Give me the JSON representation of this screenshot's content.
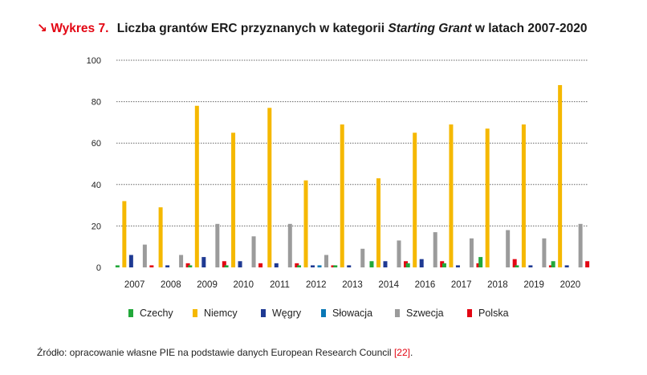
{
  "header": {
    "arrow": "↘",
    "label": "Wykres 7.",
    "title_prefix": "Liczba grantów ERC przyznanych w kategorii",
    "title_italic": "Starting Grant",
    "title_suffix": "w latach 2007-2020"
  },
  "source": {
    "text": "Źródło: opracowanie własne PIE na podstawie danych European Research Council",
    "ref": "[22]",
    "end": "."
  },
  "colors": {
    "Czechy": "#22a83a",
    "Niemcy": "#f5b800",
    "Węgry": "#1f3a93",
    "Słowacja": "#0a78b5",
    "Szwecja": "#9b9b9b",
    "Polska": "#e30613",
    "grid": "#666666",
    "title_accent": "#e30613"
  },
  "chart_data": {
    "type": "bar",
    "title": "Liczba grantów ERC przyznanych w kategorii Starting Grant w latach 2007-2020",
    "xlabel": "",
    "ylabel": "",
    "ylim": [
      0,
      100
    ],
    "yticks": [
      0,
      20,
      40,
      60,
      80,
      100
    ],
    "grid": "horizontal dotted",
    "legend_position": "bottom",
    "categories": [
      "2007",
      "2008",
      "2009",
      "2010",
      "2011",
      "2012",
      "2013",
      "2014",
      "2016",
      "2017",
      "2018",
      "2019",
      "2020"
    ],
    "series": [
      {
        "name": "Czechy",
        "values": [
          1,
          0,
          1,
          1,
          0,
          1,
          1,
          3,
          2,
          2,
          5,
          1,
          3
        ]
      },
      {
        "name": "Niemcy",
        "values": [
          32,
          29,
          78,
          65,
          77,
          42,
          69,
          43,
          65,
          69,
          67,
          69,
          88
        ]
      },
      {
        "name": "Węgry",
        "values": [
          6,
          1,
          5,
          3,
          2,
          1,
          1,
          3,
          4,
          1,
          0,
          1,
          1
        ]
      },
      {
        "name": "Słowacja",
        "values": [
          0,
          0,
          0,
          0,
          0,
          1,
          0,
          0,
          0,
          0,
          0,
          0,
          0
        ]
      },
      {
        "name": "Szwecja",
        "values": [
          11,
          6,
          21,
          15,
          21,
          6,
          9,
          13,
          17,
          14,
          18,
          14,
          21
        ]
      },
      {
        "name": "Polska",
        "values": [
          1,
          2,
          3,
          2,
          2,
          1,
          0,
          3,
          3,
          2,
          4,
          1,
          3
        ]
      }
    ]
  }
}
